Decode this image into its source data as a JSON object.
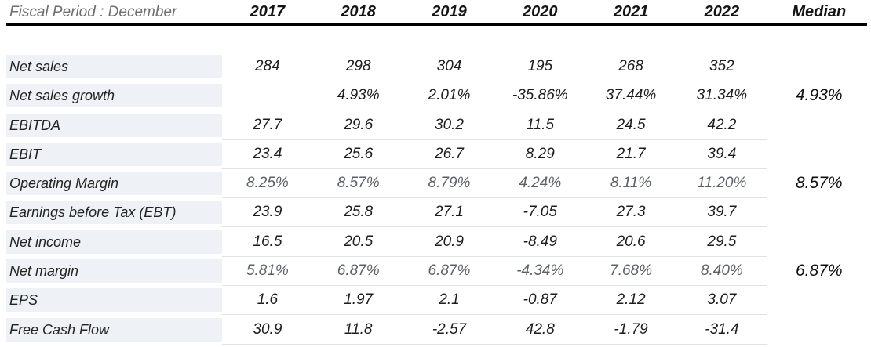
{
  "header": {
    "fiscal_label": "Fiscal Period : December",
    "years": [
      "2017",
      "2018",
      "2019",
      "2020",
      "2021",
      "2022"
    ],
    "median_label": "Median"
  },
  "rows": [
    {
      "label": "Net sales",
      "values": [
        "284",
        "298",
        "304",
        "195",
        "268",
        "352"
      ],
      "median": "",
      "muted": false
    },
    {
      "label": "Net sales growth",
      "values": [
        "",
        "4.93%",
        "2.01%",
        "-35.86%",
        "37.44%",
        "31.34%"
      ],
      "median": "4.93%",
      "muted": false
    },
    {
      "label": "EBITDA",
      "values": [
        "27.7",
        "29.6",
        "30.2",
        "11.5",
        "24.5",
        "42.2"
      ],
      "median": "",
      "muted": false
    },
    {
      "label": "EBIT",
      "values": [
        "23.4",
        "25.6",
        "26.7",
        "8.29",
        "21.7",
        "39.4"
      ],
      "median": "",
      "muted": false
    },
    {
      "label": "Operating Margin",
      "values": [
        "8.25%",
        "8.57%",
        "8.79%",
        "4.24%",
        "8.11%",
        "11.20%"
      ],
      "median": "8.57%",
      "muted": true
    },
    {
      "label": "Earnings before Tax (EBT)",
      "values": [
        "23.9",
        "25.8",
        "27.1",
        "-7.05",
        "27.3",
        "39.7"
      ],
      "median": "",
      "muted": false
    },
    {
      "label": "Net income",
      "values": [
        "16.5",
        "20.5",
        "20.9",
        "-8.49",
        "20.6",
        "29.5"
      ],
      "median": "",
      "muted": false
    },
    {
      "label": "Net margin",
      "values": [
        "5.81%",
        "6.87%",
        "6.87%",
        "-4.34%",
        "7.68%",
        "8.40%"
      ],
      "median": "6.87%",
      "muted": true
    },
    {
      "label": "EPS",
      "values": [
        "1.6",
        "1.97",
        "2.1",
        "-0.87",
        "2.12",
        "3.07"
      ],
      "median": "",
      "muted": false
    },
    {
      "label": "Free Cash Flow",
      "values": [
        "30.9",
        "11.8",
        "-2.57",
        "42.8",
        "-1.79",
        "-31.4"
      ],
      "median": "",
      "muted": false
    }
  ],
  "colors": {
    "label_background": "#eef1f6",
    "separator": "#e3e3e3",
    "header_rule": "#000000",
    "value_text": "#1d1d1d",
    "muted_percent_text": "#5c6167",
    "fiscal_label_text": "#6e6e6e",
    "year_text": "#141414"
  }
}
